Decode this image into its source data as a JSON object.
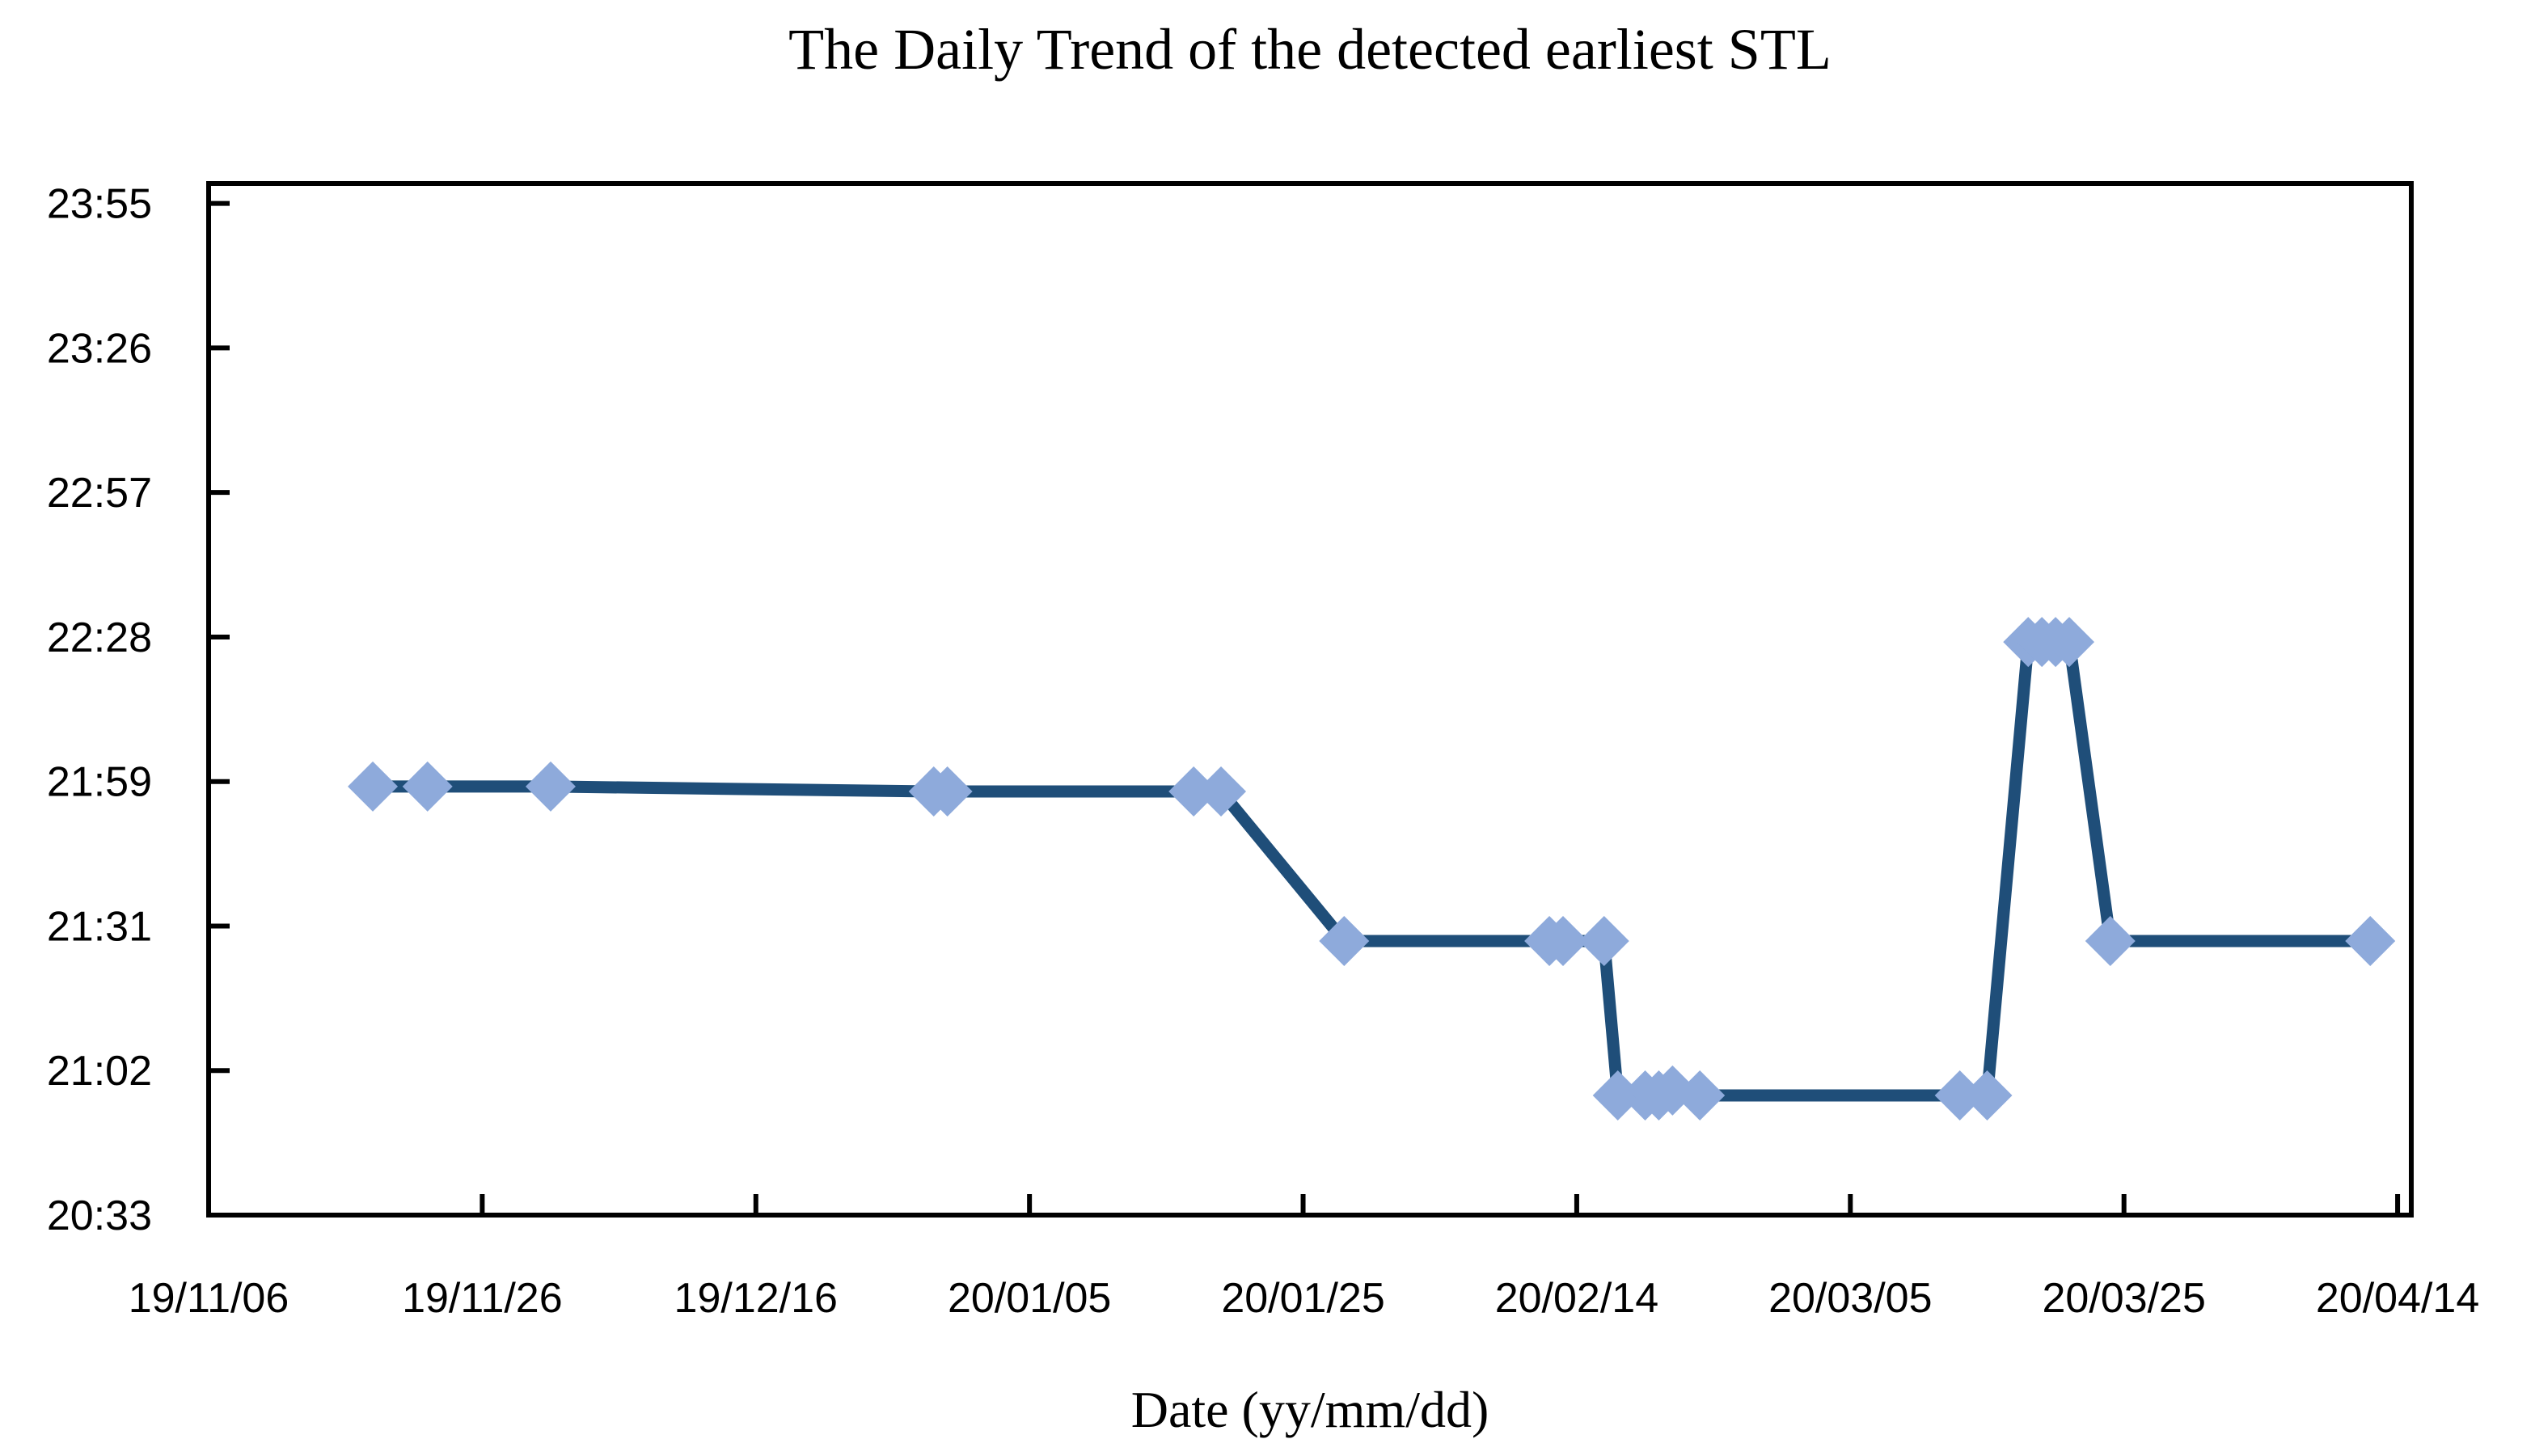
{
  "chart_data": {
    "type": "line",
    "title": "The Daily Trend of the detected earliest STL",
    "xlabel": "Date (yy/mm/dd)",
    "ylabel": "",
    "grid": false,
    "legend": "none",
    "x_axis": {
      "start_date": "19/11/06",
      "end_date": "20/04/14",
      "tick_interval_days": 20,
      "tick_labels": [
        "19/11/06",
        "19/11/26",
        "19/12/16",
        "20/01/05",
        "20/01/25",
        "20/02/14",
        "20/03/05",
        "20/03/25",
        "20/04/14"
      ]
    },
    "y_axis": {
      "min_time": "20:33",
      "top_time": "24:00",
      "tick_interval_minutes": 29,
      "tick_labels": [
        "20:33",
        "21:02",
        "21:31",
        "21:59",
        "22:28",
        "22:57",
        "23:26",
        "23:55"
      ]
    },
    "series": [
      {
        "name": "detected earliest STL",
        "line_color": "#1F4E79",
        "marker_color": "#8EAADB",
        "marker_shape": "diamond",
        "points": [
          {
            "date": "19/11/18",
            "time": "21:59"
          },
          {
            "date": "19/11/22",
            "time": "21:59"
          },
          {
            "date": "19/12/01",
            "time": "21:59"
          },
          {
            "date": "19/12/29",
            "time": "21:58"
          },
          {
            "date": "19/12/30",
            "time": "21:58"
          },
          {
            "date": "20/01/17",
            "time": "21:58"
          },
          {
            "date": "20/01/19",
            "time": "21:58"
          },
          {
            "date": "20/01/28",
            "time": "21:28"
          },
          {
            "date": "20/02/12",
            "time": "21:28"
          },
          {
            "date": "20/02/13",
            "time": "21:28"
          },
          {
            "date": "20/02/16",
            "time": "21:28"
          },
          {
            "date": "20/02/17",
            "time": "20:57"
          },
          {
            "date": "20/02/19",
            "time": "20:57"
          },
          {
            "date": "20/02/20",
            "time": "20:57"
          },
          {
            "date": "20/02/21",
            "time": "20:58"
          },
          {
            "date": "20/02/23",
            "time": "20:57"
          },
          {
            "date": "20/03/13",
            "time": "20:57"
          },
          {
            "date": "20/03/15",
            "time": "20:57"
          },
          {
            "date": "20/03/18",
            "time": "22:28"
          },
          {
            "date": "20/03/19",
            "time": "22:28"
          },
          {
            "date": "20/03/20",
            "time": "22:28"
          },
          {
            "date": "20/03/21",
            "time": "22:28"
          },
          {
            "date": "20/03/24",
            "time": "21:28"
          },
          {
            "date": "20/04/12",
            "time": "21:28"
          }
        ]
      }
    ],
    "colors": {
      "axis": "#000000",
      "text": "#000000",
      "background": "#FFFFFF"
    }
  }
}
